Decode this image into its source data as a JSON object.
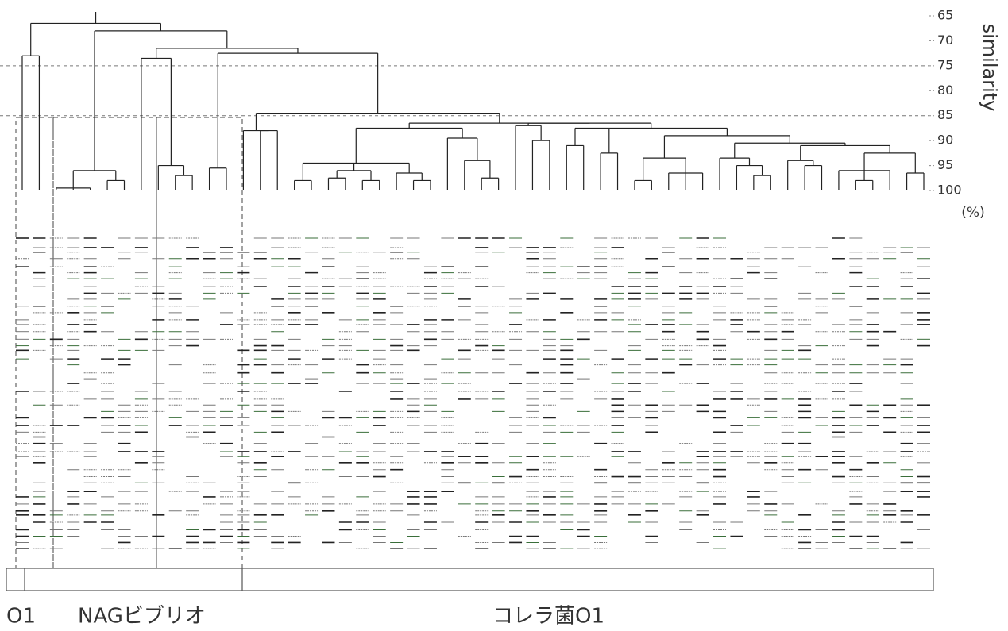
{
  "chart_data": {
    "type": "dendrogram",
    "ylabel": "similarity",
    "yunit": "(%)",
    "ylim": [
      65,
      100
    ],
    "yticks": [
      65,
      70,
      75,
      80,
      85,
      90,
      95,
      100
    ],
    "reference_lines": [
      75,
      85
    ],
    "groups": [
      "O1",
      "NAGビブリオ",
      "コレラ菌O1"
    ],
    "tree": {
      "h": 66.5,
      "c": [
        {
          "h": 73,
          "c": [
            100,
            100
          ]
        },
        {
          "h": 68,
          "c": [
            {
              "h": 96,
              "c": [
                {
                  "h": 99.5,
                  "c": [
                    100,
                    100,
                    100
                  ]
                },
                {
                  "h": 98,
                  "c": [
                    100,
                    100
                  ]
                }
              ]
            },
            {
              "h": 71.5,
              "c": [
                {
                  "h": 73.5,
                  "c": [
                    100,
                    {
                      "h": 95,
                      "c": [
                        100,
                        {
                          "h": 97,
                          "c": [
                            100,
                            100
                          ]
                        }
                      ]
                    }
                  ]
                },
                {
                  "h": 72.5,
                  "c": [
                    {
                      "h": 95.5,
                      "c": [
                        100,
                        100
                      ]
                    },
                    {
                      "h": 84.5,
                      "c": [
                        {
                          "h": 88,
                          "c": [
                            100,
                            {
                              "h": 88,
                              "c": [
                                100,
                                100
                              ]
                            }
                          ]
                        },
                        {
                          "h": 86.5,
                          "c": [
                            {
                              "h": 87.5,
                              "c": [
                                {
                                  "h": 94.5,
                                  "c": [
                                    {
                                      "h": 98,
                                      "c": [
                                        100,
                                        100
                                      ]
                                    },
                                    {
                                      "h": 96,
                                      "c": [
                                        {
                                          "h": 97.5,
                                          "c": [
                                            100,
                                            100
                                          ]
                                        },
                                        {
                                          "h": 98,
                                          "c": [
                                            100,
                                            100
                                          ]
                                        }
                                      ]
                                    },
                                    {
                                      "h": 96.5,
                                      "c": [
                                        100,
                                        {
                                          "h": 98,
                                          "c": [
                                            100,
                                            100
                                          ]
                                        }
                                      ]
                                    }
                                  ]
                                },
                                {
                                  "h": 89.5,
                                  "c": [
                                    100,
                                    {
                                      "h": 94,
                                      "c": [
                                        100,
                                        {
                                          "h": 97.5,
                                          "c": [
                                            100,
                                            100
                                          ]
                                        }
                                      ]
                                    }
                                  ]
                                }
                              ]
                            },
                            {
                              "h": 86.5,
                              "c": [
                                {
                                  "h": 87,
                                  "c": [
                                    100,
                                    {
                                      "h": 90,
                                      "c": [
                                        100,
                                        100
                                      ]
                                    }
                                  ]
                                },
                                {
                                  "h": 87.5,
                                  "c": [
                                    {
                                      "h": 91,
                                      "c": [
                                        100,
                                        100
                                      ]
                                    },
                                    {
                                      "h": 92.5,
                                      "c": [
                                        100,
                                        100
                                      ]
                                    },
                                    {
                                      "h": 89,
                                      "c": [
                                        {
                                          "h": 93.5,
                                          "c": [
                                            {
                                              "h": 98,
                                              "c": [
                                                100,
                                                100
                                              ]
                                            },
                                            {
                                              "h": 96.5,
                                              "c": [
                                                100,
                                                100,
                                                100
                                              ]
                                            }
                                          ]
                                        },
                                        {
                                          "h": 90.5,
                                          "c": [
                                            {
                                              "h": 93.5,
                                              "c": [
                                                100,
                                                {
                                                  "h": 95,
                                                  "c": [
                                                    100,
                                                    {
                                                      "h": 97,
                                                      "c": [
                                                        100,
                                                        100
                                                      ]
                                                    }
                                                  ]
                                                }
                                              ]
                                            },
                                            {
                                              "h": 91,
                                              "c": [
                                                {
                                                  "h": 94,
                                                  "c": [
                                                    100,
                                                    {
                                                      "h": 95,
                                                      "c": [
                                                        100,
                                                        100
                                                      ]
                                                    }
                                                  ]
                                                },
                                                {
                                                  "h": 92.5,
                                                  "c": [
                                                    {
                                                      "h": 96,
                                                      "c": [
                                                        100,
                                                        {
                                                          "h": 98,
                                                          "c": [
                                                            100,
                                                            100
                                                          ]
                                                        },
                                                        100
                                                      ]
                                                    },
                                                    {
                                                      "h": 96.5,
                                                      "c": [
                                                        100,
                                                        100
                                                      ]
                                                    }
                                                  ]
                                                }
                                              ]
                                            }
                                          ]
                                        }
                                      ]
                                    }
                                  ]
                                }
                              ]
                            }
                          ]
                        }
                      ]
                    }
                  ]
                }
              ]
            }
          ]
        }
      ]
    }
  }
}
